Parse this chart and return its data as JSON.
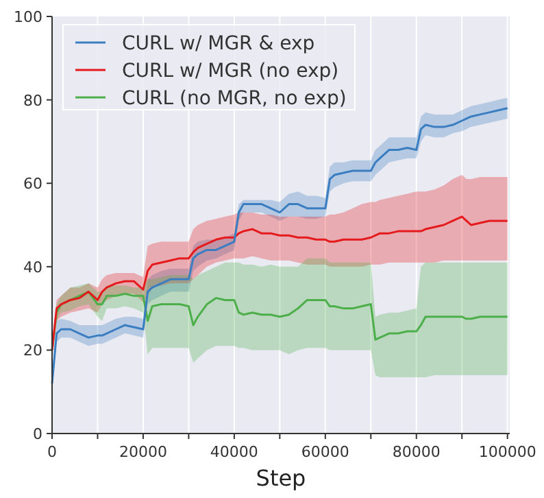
{
  "chart_data": {
    "type": "line",
    "xlabel": "Step",
    "xlim": [
      0,
      100500
    ],
    "ylim": [
      0,
      100
    ],
    "xticks": [
      0,
      {
        "value": 10000,
        "label": null
      },
      20000,
      {
        "value": 30000,
        "label": null
      },
      40000,
      {
        "value": 50000,
        "label": null
      },
      60000,
      {
        "value": 70000,
        "label": null
      },
      80000,
      {
        "value": 90000,
        "label": null
      },
      100000
    ],
    "yticks": [
      0,
      20,
      40,
      60,
      80,
      100
    ],
    "grid": "x",
    "legend": "top left",
    "marker": "none",
    "line_style": "solid",
    "x": [
      0,
      1000,
      2000,
      4000,
      6000,
      8000,
      10000,
      11000,
      12000,
      14000,
      16000,
      18000,
      20000,
      21000,
      22000,
      24000,
      26000,
      28000,
      30000,
      31000,
      32000,
      34000,
      36000,
      38000,
      40000,
      41000,
      42000,
      44000,
      46000,
      48000,
      50000,
      52000,
      54000,
      56000,
      58000,
      60000,
      61000,
      62000,
      64000,
      66000,
      68000,
      70000,
      71000,
      72000,
      74000,
      76000,
      78000,
      80000,
      81000,
      82000,
      84000,
      86000,
      88000,
      90000,
      91000,
      92000,
      94000,
      96000,
      98000,
      100000
    ],
    "series": [
      {
        "name": "CURL w/ MGR & exp",
        "color": "#3a7dc1",
        "values": [
          12,
          24,
          25,
          25,
          24,
          23,
          23.5,
          23.5,
          24,
          25,
          26,
          25.5,
          25,
          34,
          35,
          36,
          37,
          37,
          37,
          42,
          43,
          44,
          44,
          45,
          46,
          53,
          55,
          55,
          55,
          54,
          53,
          55,
          55,
          54,
          54,
          54,
          61,
          62,
          62.5,
          63,
          63,
          63,
          65,
          66,
          68,
          68,
          68.5,
          68,
          73,
          74,
          73.5,
          73.5,
          74,
          75,
          75.5,
          76,
          76.5,
          77,
          77.5,
          78
        ],
        "lower": [
          10,
          22,
          23,
          23,
          22,
          21,
          21.5,
          21.5,
          22,
          23,
          24,
          23.5,
          23,
          31,
          32,
          33,
          34,
          34,
          34,
          39,
          40,
          41.5,
          42,
          43,
          44,
          51,
          53,
          53,
          53,
          52,
          51,
          52,
          52,
          51.5,
          51.5,
          52,
          58,
          59,
          60,
          60.5,
          60.5,
          60.5,
          62,
          63,
          65,
          65.5,
          66,
          66,
          70,
          71.5,
          71,
          71,
          72,
          72.5,
          73,
          73.5,
          74,
          74.5,
          75,
          75.5
        ],
        "upper": [
          14,
          27,
          27.5,
          27,
          26,
          26,
          26,
          26,
          26.5,
          27.5,
          28,
          28,
          27.5,
          37,
          38,
          39,
          39.5,
          39.5,
          39.5,
          45,
          46,
          46.5,
          46.5,
          47,
          48,
          55,
          56,
          56,
          56,
          56,
          55.5,
          57.5,
          58,
          57,
          57,
          56.5,
          64,
          65,
          65,
          65.5,
          65.5,
          65.5,
          68,
          69,
          71,
          71,
          71,
          71,
          76,
          77,
          76.5,
          76.5,
          76.5,
          77.5,
          78,
          78.5,
          79,
          79.5,
          80,
          80.5
        ]
      },
      {
        "name": "CURL w/ MGR (no exp)",
        "color": "#e41a1c",
        "values": [
          20,
          30,
          31,
          32,
          32.5,
          34,
          32,
          34,
          35,
          36,
          36.5,
          36.5,
          34.5,
          39,
          40.5,
          41,
          41.5,
          42,
          42,
          43.5,
          44.5,
          45.5,
          46.5,
          47,
          47,
          48,
          48.5,
          49,
          48,
          48,
          47.5,
          47.5,
          47,
          47,
          46.5,
          46.5,
          46,
          46,
          46.5,
          46.5,
          46.5,
          47,
          47.5,
          48,
          48,
          48.5,
          48.5,
          48.5,
          48.5,
          49,
          49.5,
          50,
          51,
          52,
          51,
          50,
          50.5,
          51,
          51,
          51
        ],
        "lower": [
          18,
          27,
          28,
          29,
          29.5,
          30,
          29,
          31,
          32,
          33,
          33.5,
          33.5,
          31.5,
          33,
          35,
          35.5,
          36,
          36,
          36,
          37,
          38,
          40,
          41,
          41.5,
          42,
          42,
          42,
          42.5,
          42,
          41.5,
          41.5,
          41.5,
          41,
          40.5,
          40.5,
          40.5,
          40,
          40,
          40,
          40,
          40,
          40.5,
          40.5,
          40.5,
          41,
          41,
          41,
          41,
          41,
          41,
          41,
          41.5,
          41.5,
          41.5,
          41.5,
          41.5,
          41.5,
          41.5,
          41.5,
          41.5
        ],
        "upper": [
          22,
          32,
          33,
          35,
          35,
          36,
          35,
          37,
          38,
          38.5,
          38.5,
          38.5,
          37.5,
          45,
          45.5,
          46,
          46,
          46,
          46,
          49,
          50,
          51,
          51.5,
          52,
          52.5,
          53,
          53,
          53,
          52.5,
          52.5,
          52,
          52,
          52,
          52,
          52,
          52,
          52.5,
          52.5,
          53,
          54,
          55,
          55.5,
          55.5,
          56,
          56.5,
          57,
          57.5,
          58,
          58,
          58,
          58.5,
          59.5,
          61,
          62,
          61,
          61,
          61.5,
          61.5,
          61.5,
          61.5
        ]
      },
      {
        "name": "CURL (no MGR, no exp)",
        "color": "#4daf4a",
        "values": [
          20,
          29,
          31,
          32,
          33,
          34,
          31,
          31,
          33,
          33,
          33.5,
          33,
          33,
          27,
          30.5,
          31,
          31,
          31,
          30.5,
          26,
          28,
          31,
          32.5,
          32,
          32,
          29,
          28.5,
          29,
          28.5,
          28.5,
          28,
          28.5,
          30,
          32,
          32,
          32,
          30.5,
          30.5,
          30,
          30,
          30.5,
          31,
          22.5,
          23,
          24,
          24,
          24.5,
          24.5,
          26,
          28,
          28,
          28,
          28,
          28,
          27.5,
          27.5,
          28,
          28,
          28,
          28
        ],
        "lower": [
          18,
          27,
          29,
          29.5,
          30.5,
          31,
          28,
          27,
          30,
          30,
          30.5,
          30,
          29,
          19,
          20.5,
          20.5,
          20.5,
          20.5,
          20.5,
          17,
          18,
          20,
          21,
          21,
          21,
          20.5,
          20.5,
          20,
          20,
          20,
          20,
          19,
          20,
          20.5,
          20.5,
          20.5,
          20,
          20,
          20,
          20,
          20,
          20,
          14,
          13.5,
          13.5,
          13.5,
          13.5,
          13.5,
          13.5,
          13.5,
          14,
          14,
          14,
          14,
          14,
          14,
          14,
          14,
          14,
          14
        ],
        "upper": [
          22,
          31,
          33,
          35,
          35.5,
          36,
          34,
          34,
          35.5,
          35.5,
          35.5,
          35,
          35,
          37,
          37,
          37.5,
          38,
          38,
          38,
          37,
          38,
          39,
          40,
          41,
          41,
          41,
          40.5,
          40.5,
          40,
          40.5,
          40,
          40,
          40,
          42,
          42,
          42,
          41,
          41,
          41,
          41,
          41,
          41,
          28,
          28.5,
          29,
          29,
          29.5,
          30,
          40,
          41,
          41,
          41,
          41,
          41,
          41,
          41,
          41,
          41,
          41,
          41
        ]
      }
    ]
  }
}
